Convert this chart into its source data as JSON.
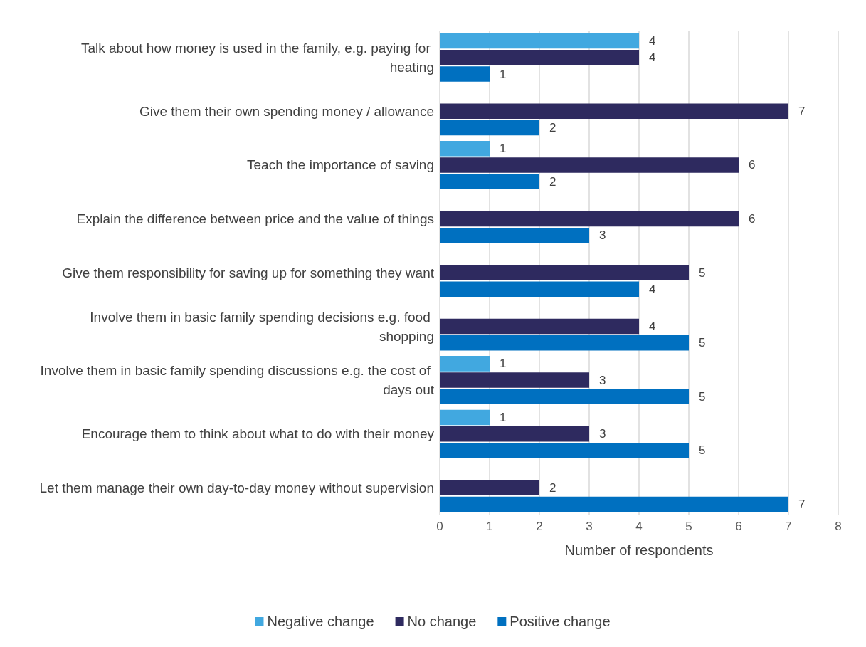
{
  "chart_data": {
    "type": "bar",
    "orientation": "horizontal",
    "xlabel": "Number of respondents",
    "categories": [
      "Talk about how money is used in the family, e.g. paying for heating",
      "Give them their own spending money / allowance",
      "Teach the importance of saving",
      "Explain the difference between price and the value of things",
      "Give them responsibility for saving up for something they want",
      "Involve them in basic family spending decisions e.g. food shopping",
      "Involve them in basic family spending discussions e.g. the cost of days out",
      "Encourage them to think about what to do with their money",
      "Let them manage their own day-to-day money without supervision"
    ],
    "series": [
      {
        "name": "Negative change",
        "color": "#41a8e0",
        "values": [
          4,
          null,
          1,
          null,
          null,
          null,
          1,
          1,
          null
        ]
      },
      {
        "name": "No change",
        "color": "#2e2a5f",
        "values": [
          4,
          7,
          6,
          6,
          5,
          4,
          3,
          3,
          2
        ]
      },
      {
        "name": "Positive change",
        "color": "#0070c0",
        "values": [
          1,
          2,
          2,
          3,
          4,
          5,
          5,
          5,
          7
        ]
      }
    ],
    "xlim": [
      0,
      8
    ],
    "xticks": [
      0,
      1,
      2,
      3,
      4,
      5,
      6,
      7,
      8
    ],
    "grid": "x",
    "legend": "bottom",
    "data_labels": true
  }
}
